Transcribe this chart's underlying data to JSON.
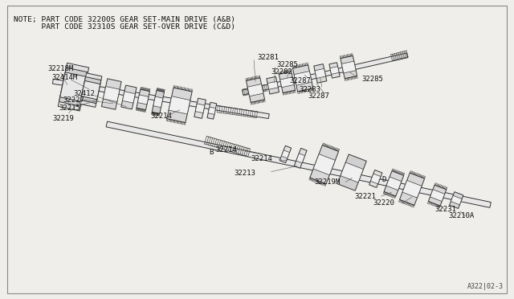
{
  "bg_color": "#ffffff",
  "border_color": "#d0cec8",
  "title_line1": "NOTE; PART CODE 32200S GEAR SET-MAIN DRIVE (A&B)",
  "title_line2": "      PART CODE 32310S GEAR SET-OVER DRIVE (C&D)",
  "diagram_ref": "A322|02-3",
  "title_fontsize": 6.8,
  "ref_fontsize": 6.0,
  "label_fontsize": 6.5,
  "line_color": "#333333",
  "hatch_color": "#555555",
  "fill_light": "#e8e8e8",
  "fill_mid": "#cccccc",
  "fill_dark": "#aaaaaa"
}
